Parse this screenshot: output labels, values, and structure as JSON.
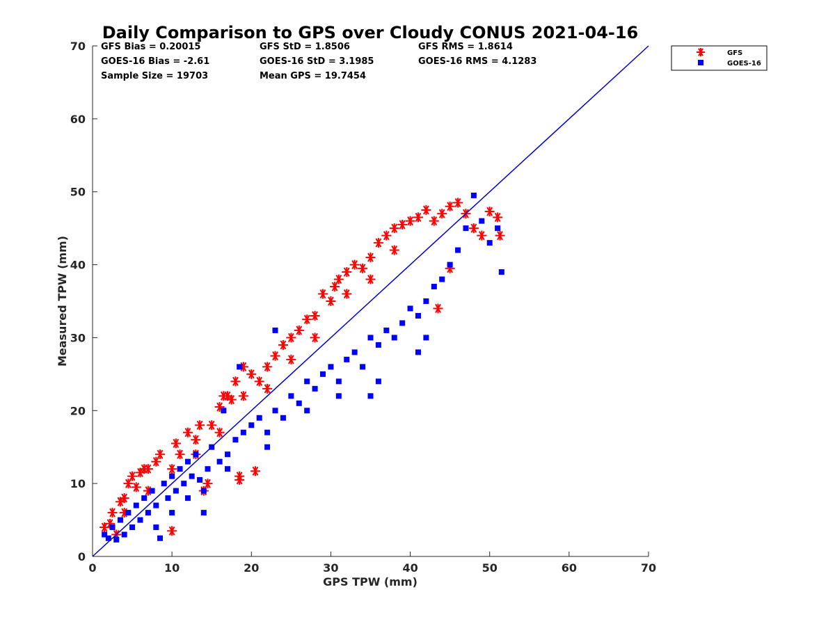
{
  "chart_data": {
    "type": "scatter",
    "title": "Daily Comparison to GPS over Cloudy CONUS 2021-04-16",
    "xlabel": "GPS TPW (mm)",
    "ylabel": "Measured TPW (mm)",
    "xlim": [
      0,
      70
    ],
    "ylim": [
      0,
      70
    ],
    "x_ticks": [
      "0",
      "10",
      "20",
      "30",
      "40",
      "50",
      "60",
      "70"
    ],
    "y_ticks": [
      "0",
      "10",
      "20",
      "30",
      "40",
      "50",
      "60",
      "70"
    ],
    "grid": false,
    "legend_position": "outside-top-right",
    "stats": [
      [
        "GFS Bias = 0.20015",
        "GFS StD = 1.8506",
        "GFS RMS = 1.8614"
      ],
      [
        "GOES-16 Bias = -2.61",
        "GOES-16 StD = 3.1985",
        "GOES-16 RMS = 4.1283"
      ],
      [
        "Sample Size = 19703",
        "Mean GPS = 19.7454",
        ""
      ]
    ],
    "reference_line": {
      "x": [
        0,
        70
      ],
      "y": [
        0,
        70
      ],
      "color": "#0000cc"
    },
    "series": [
      {
        "name": "GFS",
        "marker": "asterisk",
        "color": "#ff0000",
        "points": [
          [
            1.5,
            4
          ],
          [
            2.2,
            4.5
          ],
          [
            2.5,
            6
          ],
          [
            3,
            3
          ],
          [
            3.5,
            7.5
          ],
          [
            4,
            8
          ],
          [
            4.5,
            10
          ],
          [
            5,
            11
          ],
          [
            5.5,
            9.5
          ],
          [
            6,
            11.5
          ],
          [
            6.5,
            12
          ],
          [
            7,
            12
          ],
          [
            8,
            13
          ],
          [
            8.5,
            14
          ],
          [
            10,
            3.5
          ],
          [
            10.5,
            15.5
          ],
          [
            11,
            14
          ],
          [
            12,
            17
          ],
          [
            13,
            16
          ],
          [
            13.5,
            18
          ],
          [
            14,
            9
          ],
          [
            14.5,
            10
          ],
          [
            15,
            18
          ],
          [
            16,
            20.5
          ],
          [
            16.5,
            22
          ],
          [
            17,
            22
          ],
          [
            17.5,
            21.5
          ],
          [
            18,
            24
          ],
          [
            18.5,
            11
          ],
          [
            18.5,
            10.5
          ],
          [
            19,
            26
          ],
          [
            20,
            25
          ],
          [
            20.5,
            11.7
          ],
          [
            21,
            24
          ],
          [
            22,
            26
          ],
          [
            23,
            27.5
          ],
          [
            24,
            29
          ],
          [
            25,
            30
          ],
          [
            26,
            31
          ],
          [
            27,
            32.5
          ],
          [
            28,
            33
          ],
          [
            29,
            36
          ],
          [
            30,
            35
          ],
          [
            30.5,
            37
          ],
          [
            31,
            38
          ],
          [
            32,
            39
          ],
          [
            33,
            40
          ],
          [
            34,
            39.5
          ],
          [
            35,
            41
          ],
          [
            36,
            43
          ],
          [
            37,
            44
          ],
          [
            38,
            45
          ],
          [
            39,
            45.5
          ],
          [
            40,
            46
          ],
          [
            41,
            46.5
          ],
          [
            42,
            47.5
          ],
          [
            43,
            46
          ],
          [
            44,
            47
          ],
          [
            45,
            48
          ],
          [
            46,
            48.5
          ],
          [
            47,
            47
          ],
          [
            48,
            45
          ],
          [
            49,
            44
          ],
          [
            50,
            47.3
          ],
          [
            51,
            46.5
          ],
          [
            51.3,
            44
          ],
          [
            43.5,
            34
          ],
          [
            45,
            39.5
          ],
          [
            38,
            42
          ],
          [
            35,
            38
          ],
          [
            32,
            36
          ],
          [
            28,
            30
          ],
          [
            25,
            27
          ],
          [
            22,
            23
          ],
          [
            19,
            22
          ],
          [
            16,
            17
          ],
          [
            13,
            14
          ],
          [
            10,
            12
          ],
          [
            7,
            9
          ],
          [
            4,
            6
          ]
        ]
      },
      {
        "name": "GOES-16",
        "marker": "square",
        "color": "#0000ff",
        "points": [
          [
            1.5,
            3
          ],
          [
            2,
            2.5
          ],
          [
            2.5,
            4
          ],
          [
            3,
            2.3
          ],
          [
            3.5,
            5
          ],
          [
            4,
            3
          ],
          [
            4.5,
            6
          ],
          [
            5,
            4
          ],
          [
            5.5,
            7
          ],
          [
            6,
            5
          ],
          [
            6.5,
            8
          ],
          [
            7,
            6
          ],
          [
            7.5,
            9
          ],
          [
            8,
            7
          ],
          [
            8.5,
            2.5
          ],
          [
            9,
            10
          ],
          [
            9.5,
            8
          ],
          [
            10,
            11
          ],
          [
            10.5,
            9
          ],
          [
            11,
            12
          ],
          [
            11.5,
            10
          ],
          [
            12,
            13
          ],
          [
            12.5,
            11
          ],
          [
            13,
            14
          ],
          [
            13.5,
            10.5
          ],
          [
            14,
            6
          ],
          [
            14.5,
            12
          ],
          [
            15,
            15
          ],
          [
            16,
            13
          ],
          [
            16.5,
            20
          ],
          [
            17,
            14
          ],
          [
            18,
            16
          ],
          [
            18.5,
            26
          ],
          [
            19,
            17
          ],
          [
            20,
            18
          ],
          [
            21,
            19
          ],
          [
            22,
            17
          ],
          [
            23,
            31
          ],
          [
            23,
            20
          ],
          [
            24,
            19
          ],
          [
            25,
            22
          ],
          [
            26,
            21
          ],
          [
            27,
            24
          ],
          [
            28,
            23
          ],
          [
            29,
            25
          ],
          [
            30,
            26
          ],
          [
            31,
            24
          ],
          [
            32,
            27
          ],
          [
            33,
            28
          ],
          [
            34,
            26
          ],
          [
            35,
            22
          ],
          [
            35,
            30
          ],
          [
            36,
            29
          ],
          [
            37,
            31
          ],
          [
            38,
            30
          ],
          [
            39,
            32
          ],
          [
            40,
            34
          ],
          [
            41,
            33
          ],
          [
            42,
            35
          ],
          [
            43,
            37
          ],
          [
            44,
            38
          ],
          [
            45,
            40
          ],
          [
            46,
            42
          ],
          [
            47,
            45
          ],
          [
            48,
            49.5
          ],
          [
            49,
            46
          ],
          [
            50,
            43
          ],
          [
            51,
            45
          ],
          [
            51.5,
            39
          ],
          [
            41,
            28
          ],
          [
            42,
            30
          ],
          [
            36,
            24
          ],
          [
            31,
            22
          ],
          [
            27,
            20
          ],
          [
            22,
            15
          ],
          [
            17,
            12
          ],
          [
            14,
            9
          ],
          [
            12,
            8
          ],
          [
            10,
            6
          ],
          [
            8,
            4
          ]
        ]
      }
    ]
  }
}
